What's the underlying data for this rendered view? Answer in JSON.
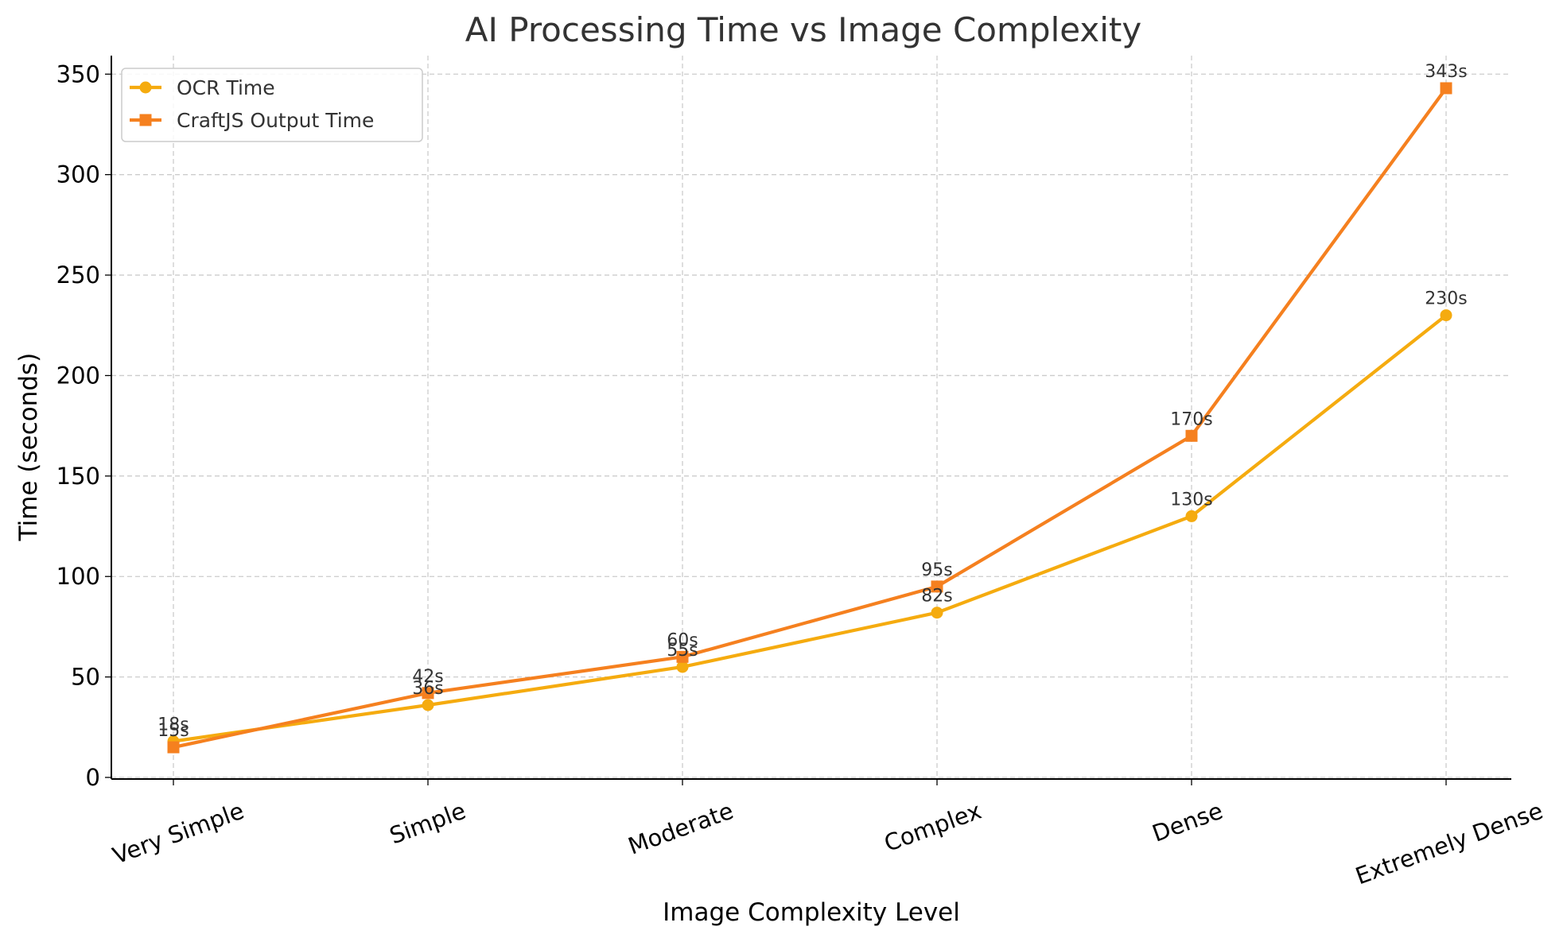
{
  "chart_data": {
    "type": "line",
    "title": "AI Processing Time vs Image Complexity",
    "xlabel": "Image Complexity Level",
    "ylabel": "Time (seconds)",
    "categories": [
      "Very Simple",
      "Simple",
      "Moderate",
      "Complex",
      "Dense",
      "Extremely Dense"
    ],
    "ylim": [
      0,
      360
    ],
    "yticks": [
      0,
      50,
      100,
      150,
      200,
      250,
      300,
      350
    ],
    "grid": true,
    "legend_position": "top-left",
    "series": [
      {
        "name": "OCR Time",
        "marker": "circle",
        "color": "#f5ab0f",
        "values": [
          18,
          36,
          55,
          82,
          130,
          230
        ],
        "labels": [
          "18s",
          "36s",
          "55s",
          "82s",
          "130s",
          "230s"
        ]
      },
      {
        "name": "CraftJS Output Time",
        "marker": "square",
        "color": "#f5801f",
        "values": [
          15,
          42,
          60,
          95,
          170,
          343
        ],
        "labels": [
          "15s",
          "42s",
          "60s",
          "95s",
          "170s",
          "343s"
        ]
      }
    ]
  }
}
